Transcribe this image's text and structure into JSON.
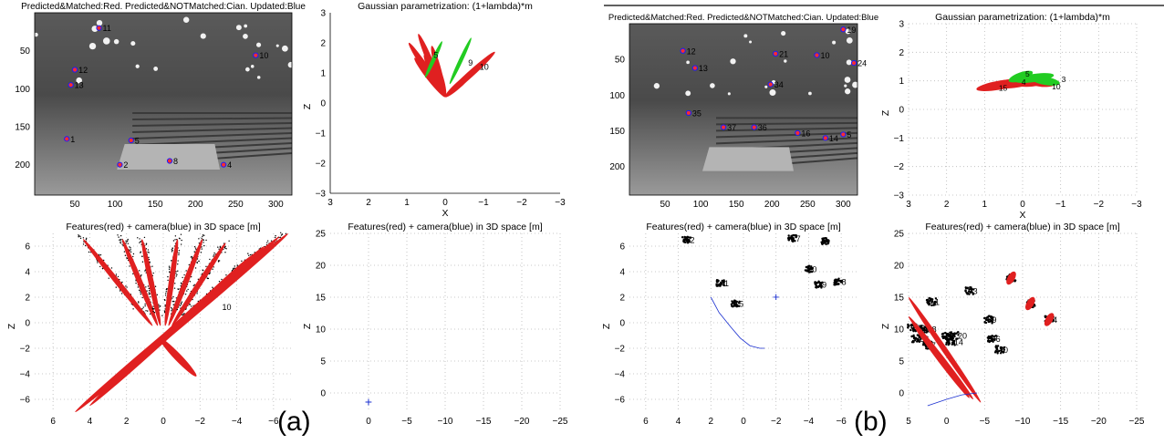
{
  "colors": {
    "feature": "#000000",
    "ellipse": "#e02020",
    "unmatched": "#22cc22",
    "camera": "#1a2fd0",
    "grid": "#b8b8b8",
    "photo_dark": "#4a4a4a",
    "photo_light": "#9a9a9a"
  },
  "figure_labels": [
    "(a)",
    "(b)"
  ],
  "chart_data": [
    {
      "id": "a-image",
      "type": "scatter",
      "title": "Predicted&Matched:Red. Predicted&NOTMatched:Cian. Updated:Blue",
      "xlim": [
        0,
        320
      ],
      "ylim": [
        240,
        0
      ],
      "xticks": [
        50,
        100,
        150,
        200,
        250,
        300
      ],
      "yticks": [
        50,
        100,
        150,
        200
      ],
      "points": [
        {
          "label": "11",
          "x": 80,
          "y": 20
        },
        {
          "label": "10",
          "x": 275,
          "y": 56
        },
        {
          "label": "12",
          "x": 50,
          "y": 75
        },
        {
          "label": "13",
          "x": 45,
          "y": 95
        },
        {
          "label": "5",
          "x": 120,
          "y": 168
        },
        {
          "label": "1",
          "x": 40,
          "y": 166
        },
        {
          "label": "8",
          "x": 168,
          "y": 195
        },
        {
          "label": "4",
          "x": 235,
          "y": 200
        },
        {
          "label": "2",
          "x": 106,
          "y": 200
        }
      ]
    },
    {
      "id": "a-gauss",
      "type": "scatter",
      "title": "Gaussian parametrization: (1+lambda)*m",
      "xlabel": "X",
      "ylabel": "Z",
      "xlim": [
        3,
        -3
      ],
      "ylim": [
        -3,
        3
      ],
      "xticks": [
        3,
        2,
        1,
        0,
        -1,
        -2,
        -3
      ],
      "yticks": [
        3,
        2,
        1,
        0,
        -1,
        -2,
        -3
      ],
      "points": [
        {
          "label": "5",
          "x": 0.3,
          "y": 1.5
        },
        {
          "label": "9",
          "x": -0.6,
          "y": 1.25
        },
        {
          "label": "10",
          "x": -0.9,
          "y": 1.1
        }
      ]
    },
    {
      "id": "a-3d-left",
      "type": "scatter",
      "title": "Features(red) + camera(blue) in 3D space [m]",
      "ylabel": "Z",
      "xlim": [
        7,
        -7
      ],
      "ylim": [
        -7,
        7
      ],
      "xticks": [
        6,
        4,
        2,
        0,
        -2,
        -4,
        -6
      ],
      "yticks": [
        6,
        4,
        2,
        0,
        -2,
        -4,
        -6
      ],
      "points": [
        {
          "label": "10",
          "x": -3.2,
          "y": 1
        }
      ]
    },
    {
      "id": "a-3d-right",
      "type": "scatter",
      "title": "Features(red) + camera(blue) in 3D space [m]",
      "ylabel": "Z",
      "xlim": [
        5,
        -25
      ],
      "ylim": [
        -3,
        25
      ],
      "xticks": [
        0,
        -5,
        -10,
        -15,
        -20,
        -25
      ],
      "yticks": [
        0,
        5,
        10,
        15,
        20,
        25
      ],
      "camera": {
        "x": 0,
        "y": -1.5
      }
    },
    {
      "id": "b-image",
      "type": "scatter",
      "title": "Predicted&Matched:Red. Predicted&NOTMatched:Cian. Updated:Blue",
      "xlim": [
        0,
        320
      ],
      "ylim": [
        240,
        0
      ],
      "xticks": [
        50,
        100,
        150,
        200,
        250,
        300
      ],
      "yticks": [
        50,
        100,
        150,
        200
      ],
      "points": [
        {
          "label": "19",
          "x": 300,
          "y": 8
        },
        {
          "label": "12",
          "x": 75,
          "y": 38
        },
        {
          "label": "21",
          "x": 205,
          "y": 42
        },
        {
          "label": "10",
          "x": 263,
          "y": 44
        },
        {
          "label": "24",
          "x": 315,
          "y": 55
        },
        {
          "label": "13",
          "x": 92,
          "y": 62
        },
        {
          "label": "34",
          "x": 198,
          "y": 85
        },
        {
          "label": "35",
          "x": 83,
          "y": 125
        },
        {
          "label": "37",
          "x": 132,
          "y": 145
        },
        {
          "label": "36",
          "x": 175,
          "y": 145
        },
        {
          "label": "16",
          "x": 236,
          "y": 153
        },
        {
          "label": "14",
          "x": 275,
          "y": 160
        },
        {
          "label": "5",
          "x": 300,
          "y": 155
        }
      ]
    },
    {
      "id": "b-gauss",
      "type": "scatter",
      "title": "Gaussian parametrization: (1+lambda)*m",
      "xlabel": "X",
      "ylabel": "Z",
      "xlim": [
        3,
        -3
      ],
      "ylim": [
        -3,
        3
      ],
      "xticks": [
        3,
        2,
        1,
        0,
        -1,
        -2,
        -3
      ],
      "yticks": [
        3,
        2,
        1,
        0,
        -1,
        -2,
        -3
      ],
      "points": [
        {
          "label": "5",
          "x": 0,
          "y": 1.25
        },
        {
          "label": "3",
          "x": -0.95,
          "y": 1.05
        },
        {
          "label": "10",
          "x": -0.7,
          "y": 0.8
        },
        {
          "label": "4",
          "x": 0.1,
          "y": 0.95
        },
        {
          "label": "15",
          "x": 0.7,
          "y": 0.75
        }
      ]
    },
    {
      "id": "b-3d-left",
      "type": "scatter",
      "title": "Features(red) + camera(blue) in 3D space [m]",
      "ylabel": "Z",
      "xlim": [
        7,
        -7
      ],
      "ylim": [
        -7,
        7
      ],
      "xticks": [
        6,
        4,
        2,
        0,
        -2,
        -4,
        -6
      ],
      "yticks": [
        6,
        4,
        2,
        0,
        -2,
        -4,
        -6
      ],
      "points": [
        {
          "label": "2",
          "x": 3.5,
          "y": 6.5
        },
        {
          "label": "7",
          "x": -3,
          "y": 6.6
        },
        {
          "label": "",
          "x": -5,
          "y": 6.4
        },
        {
          "label": "0",
          "x": -4,
          "y": 4.2
        },
        {
          "label": "1",
          "x": 1.4,
          "y": 3.1
        },
        {
          "label": "9",
          "x": -4.6,
          "y": 3
        },
        {
          "label": "8",
          "x": -5.8,
          "y": 3.2
        },
        {
          "label": "5",
          "x": 0.5,
          "y": 1.5
        }
      ],
      "camera": {
        "x": -2,
        "y": 2
      }
    },
    {
      "id": "b-3d-right",
      "type": "scatter",
      "title": "Features(red) + camera(blue) in 3D space [m]",
      "ylabel": "Z",
      "xlim": [
        5,
        -25
      ],
      "ylim": [
        -3,
        25
      ],
      "xticks": [
        5,
        0,
        -5,
        -10,
        -15,
        -20,
        -25
      ],
      "yticks": [
        0,
        5,
        10,
        15,
        20,
        25
      ],
      "points": [
        {
          "label": "",
          "x": -8.5,
          "y": 18
        },
        {
          "label": "3",
          "x": -3,
          "y": 16
        },
        {
          "label": "",
          "x": -11,
          "y": 14
        },
        {
          "label": "1",
          "x": 2,
          "y": 14.3
        },
        {
          "label": "4",
          "x": -13.5,
          "y": 11.5
        },
        {
          "label": "9",
          "x": -5.5,
          "y": 11.5
        },
        {
          "label": "5",
          "x": 0,
          "y": 9
        },
        {
          "label": "20",
          "x": -1,
          "y": 9
        },
        {
          "label": "14",
          "x": -0.5,
          "y": 8
        },
        {
          "label": "6",
          "x": -6,
          "y": 8.5
        },
        {
          "label": "0",
          "x": -7,
          "y": 6.8
        },
        {
          "label": "28",
          "x": 4.5,
          "y": 10.2
        },
        {
          "label": "18",
          "x": 3,
          "y": 10
        },
        {
          "label": "36",
          "x": 4,
          "y": 8.5
        },
        {
          "label": "7",
          "x": 2.5,
          "y": 7.5
        }
      ]
    }
  ]
}
